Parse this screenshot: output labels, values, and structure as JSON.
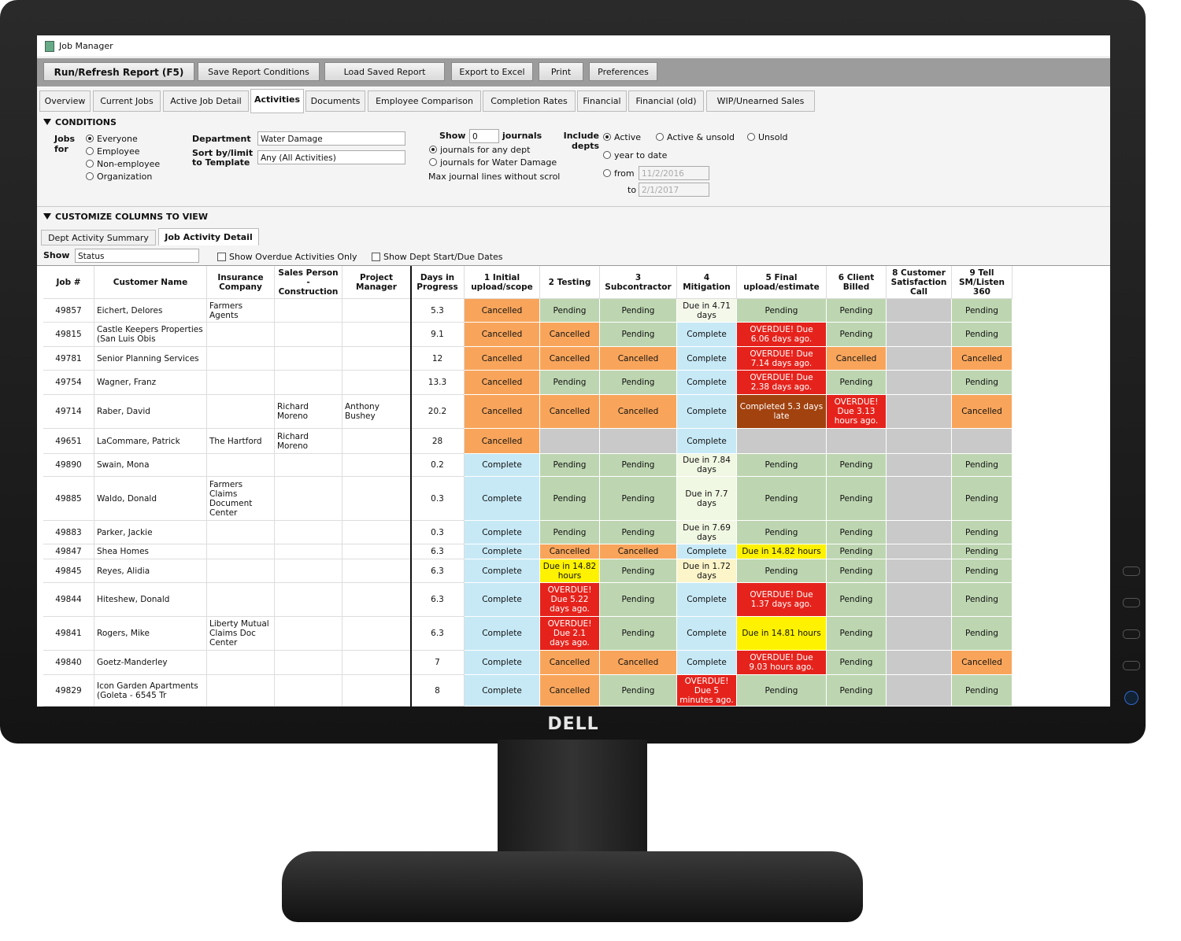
{
  "monitor": {
    "brand": "DELL"
  },
  "window": {
    "title": "Job Manager"
  },
  "toolbar": [
    "Run/Refresh Report (F5)",
    "Save Report Conditions",
    "Load Saved Report",
    "Export to Excel",
    "Print",
    "Preferences"
  ],
  "tabs": [
    "Overview",
    "Current Jobs",
    "Active Job Detail",
    "Activities",
    "Documents",
    "Employee Comparison",
    "Completion Rates",
    "Financial",
    "Financial (old)",
    "WIP/Unearned Sales"
  ],
  "conditions": {
    "title": "CONDITIONS",
    "jobs_for_label": "Jobs for",
    "jobs_for_options": [
      "Everyone",
      "Employee",
      "Non-employee",
      "Organization"
    ],
    "department_label": "Department",
    "department_value": "Water Damage",
    "sort_label": "Sort by/limit to Template",
    "sort_value": "Any (All Activities)",
    "show_label": "Show",
    "show_value": "0",
    "journals_label": "journals",
    "journal_options": [
      "journals for any dept",
      "journals for Water Damage"
    ],
    "max_lines_label": "Max journal lines without scrol",
    "include_label": "Include depts",
    "include_options": [
      "Active",
      "Active & unsold",
      "Unsold"
    ],
    "year_to_date": "year to date",
    "from_label": "from",
    "from_value": "11/2/2016",
    "to_label": "to",
    "to_value": "2/1/2017"
  },
  "customize": {
    "title": "CUSTOMIZE COLUMNS TO VIEW",
    "subtabs": [
      "Dept Activity Summary",
      "Job Activity Detail"
    ],
    "show_label": "Show",
    "show_value": "Status",
    "checkboxes": [
      "Show Overdue Activities Only",
      "Show Dept Start/Due Dates"
    ]
  },
  "table": {
    "headers": [
      "Job #",
      "Customer Name",
      "Insurance Company",
      "Sales Person - Construction",
      "Project Manager",
      "Days in Progress",
      "1 Initial upload/scope",
      "2 Testing",
      "3 Subcontractor",
      "4 Mitigation",
      "5 Final upload/estimate",
      "6 Client Billed",
      "8 Customer Satisfaction Call",
      "9 Tell SM/Listen 360"
    ],
    "rows": [
      {
        "job": 49857,
        "customer": "Eichert, Delores",
        "insurance": "Farmers Agents",
        "sales_person": null,
        "project_manager": null,
        "days": 5.3,
        "activities": [
          {
            "text": "Cancelled",
            "color": "#f8a55b"
          },
          {
            "text": "Pending",
            "color": "#bdd6b1"
          },
          {
            "text": "Pending",
            "color": "#bdd6b1"
          },
          {
            "text": "Due in 4.71 days",
            "color": "#f4f8ea"
          },
          {
            "text": "Pending",
            "color": "#bdd6b1"
          },
          {
            "text": "Pending",
            "color": "#bdd6b1"
          },
          {
            "color": "#c9c9c9"
          },
          {
            "text": "Pending",
            "color": "#bdd6b1"
          }
        ]
      },
      {
        "job": 49815,
        "customer": "Castle Keepers Properties (San Luis Obis",
        "insurance": null,
        "sales_person": null,
        "project_manager": null,
        "days": 9.1,
        "activities": [
          {
            "text": "Cancelled",
            "color": "#f8a55b"
          },
          {
            "text": "Cancelled",
            "color": "#f8a55b"
          },
          {
            "text": "Pending",
            "color": "#bdd6b1"
          },
          {
            "text": "Complete",
            "color": "#c7e9f6"
          },
          {
            "text": "OVERDUE! Due 6.06 days ago.",
            "color": "#e5231c"
          },
          {
            "text": "Pending",
            "color": "#bdd6b1"
          },
          {
            "color": "#c9c9c9"
          },
          {
            "text": "Pending",
            "color": "#bdd6b1"
          }
        ]
      },
      {
        "job": 49781,
        "customer": "Senior Planning Services",
        "insurance": null,
        "sales_person": null,
        "project_manager": null,
        "days": 12,
        "activities": [
          {
            "text": "Cancelled",
            "color": "#f8a55b"
          },
          {
            "text": "Cancelled",
            "color": "#f8a55b"
          },
          {
            "text": "Cancelled",
            "color": "#f8a55b"
          },
          {
            "text": "Complete",
            "color": "#c7e9f6"
          },
          {
            "text": "OVERDUE! Due 7.14 days ago.",
            "color": "#e5231c"
          },
          {
            "text": "Cancelled",
            "color": "#f8a55b"
          },
          {
            "color": "#c9c9c9"
          },
          {
            "text": "Cancelled",
            "color": "#f8a55b"
          }
        ]
      },
      {
        "job": 49754,
        "customer": "Wagner, Franz",
        "insurance": null,
        "sales_person": null,
        "project_manager": null,
        "days": 13.3,
        "activities": [
          {
            "text": "Cancelled",
            "color": "#f8a55b"
          },
          {
            "text": "Pending",
            "color": "#bdd6b1"
          },
          {
            "text": "Pending",
            "color": "#bdd6b1"
          },
          {
            "text": "Complete",
            "color": "#c7e9f6"
          },
          {
            "text": "OVERDUE! Due 2.38 days ago.",
            "color": "#e5231c"
          },
          {
            "text": "Pending",
            "color": "#bdd6b1"
          },
          {
            "color": "#c9c9c9"
          },
          {
            "text": "Pending",
            "color": "#bdd6b1"
          }
        ]
      },
      {
        "job": 49714,
        "customer": "Raber, David",
        "insurance": null,
        "sales_person": "Richard Moreno",
        "project_manager": "Anthony Bushey",
        "days": 20.2,
        "activities": [
          {
            "text": "Cancelled",
            "color": "#f8a55b"
          },
          {
            "text": "Cancelled",
            "color": "#f8a55b"
          },
          {
            "text": "Cancelled",
            "color": "#f8a55b"
          },
          {
            "text": "Complete",
            "color": "#c7e9f6"
          },
          {
            "text": "Completed 5.3 days late",
            "color": "#a1420f"
          },
          {
            "text": "OVERDUE! Due 3.13 hours ago.",
            "color": "#e5231c"
          },
          {
            "color": "#c9c9c9"
          },
          {
            "text": "Cancelled",
            "color": "#f8a55b"
          }
        ]
      },
      {
        "job": 49651,
        "customer": "LaCommare, Patrick",
        "insurance": "The Hartford",
        "sales_person": "Richard Moreno",
        "project_manager": null,
        "days": 28,
        "activities": [
          {
            "text": "Cancelled",
            "color": "#f8a55b"
          },
          {
            "color": "#c9c9c9"
          },
          {
            "color": "#c9c9c9"
          },
          {
            "text": "Complete",
            "color": "#c7e9f6"
          },
          {
            "color": "#c9c9c9"
          },
          {
            "color": "#c9c9c9"
          },
          {
            "color": "#c9c9c9"
          },
          {
            "color": "#c9c9c9"
          }
        ]
      },
      {
        "job": 49890,
        "customer": "Swain, Mona",
        "insurance": null,
        "sales_person": null,
        "project_manager": null,
        "days": 0.2,
        "activities": [
          {
            "text": "Complete",
            "color": "#c7e9f6"
          },
          {
            "text": "Pending",
            "color": "#bdd6b1"
          },
          {
            "text": "Pending",
            "color": "#bdd6b1"
          },
          {
            "text": "Due in 7.84 days",
            "color": "#f0f7e2"
          },
          {
            "text": "Pending",
            "color": "#bdd6b1"
          },
          {
            "text": "Pending",
            "color": "#bdd6b1"
          },
          {
            "color": "#c9c9c9"
          },
          {
            "text": "Pending",
            "color": "#bdd6b1"
          }
        ]
      },
      {
        "job": 49885,
        "customer": "Waldo, Donald",
        "insurance": "Farmers Claims Document Center",
        "sales_person": null,
        "project_manager": null,
        "days": 0.3,
        "activities": [
          {
            "text": "Complete",
            "color": "#c7e9f6"
          },
          {
            "text": "Pending",
            "color": "#bdd6b1"
          },
          {
            "text": "Pending",
            "color": "#bdd6b1"
          },
          {
            "text": "Due in 7.7 days",
            "color": "#f0f7e2"
          },
          {
            "text": "Pending",
            "color": "#bdd6b1"
          },
          {
            "text": "Pending",
            "color": "#bdd6b1"
          },
          {
            "color": "#c9c9c9"
          },
          {
            "text": "Pending",
            "color": "#bdd6b1"
          }
        ]
      },
      {
        "job": 49883,
        "customer": "Parker, Jackie",
        "insurance": null,
        "sales_person": null,
        "project_manager": null,
        "days": 0.3,
        "activities": [
          {
            "text": "Complete",
            "color": "#c7e9f6"
          },
          {
            "text": "Pending",
            "color": "#bdd6b1"
          },
          {
            "text": "Pending",
            "color": "#bdd6b1"
          },
          {
            "text": "Due in 7.69 days",
            "color": "#f0f7e2"
          },
          {
            "text": "Pending",
            "color": "#bdd6b1"
          },
          {
            "text": "Pending",
            "color": "#bdd6b1"
          },
          {
            "color": "#c9c9c9"
          },
          {
            "text": "Pending",
            "color": "#bdd6b1"
          }
        ]
      },
      {
        "job": 49847,
        "customer": "Shea Homes",
        "insurance": null,
        "sales_person": null,
        "project_manager": null,
        "days": 6.3,
        "activities": [
          {
            "text": "Complete",
            "color": "#c7e9f6"
          },
          {
            "text": "Cancelled",
            "color": "#f8a55b"
          },
          {
            "text": "Cancelled",
            "color": "#f8a55b"
          },
          {
            "text": "Complete",
            "color": "#c7e9f6"
          },
          {
            "text": "Due in 14.82 hours",
            "color": "#fff200"
          },
          {
            "text": "Pending",
            "color": "#bdd6b1"
          },
          {
            "color": "#c9c9c9"
          },
          {
            "text": "Pending",
            "color": "#bdd6b1"
          }
        ]
      },
      {
        "job": 49845,
        "customer": "Reyes, Alidia",
        "insurance": null,
        "sales_person": null,
        "project_manager": null,
        "days": 6.3,
        "activities": [
          {
            "text": "Complete",
            "color": "#c7e9f6"
          },
          {
            "text": "Due in 14.82 hours",
            "color": "#fff200"
          },
          {
            "text": "Pending",
            "color": "#bdd6b1"
          },
          {
            "text": "Due in 1.72 days",
            "color": "#fcf5c9"
          },
          {
            "text": "Pending",
            "color": "#bdd6b1"
          },
          {
            "text": "Pending",
            "color": "#bdd6b1"
          },
          {
            "color": "#c9c9c9"
          },
          {
            "text": "Pending",
            "color": "#bdd6b1"
          }
        ]
      },
      {
        "job": 49844,
        "customer": "Hiteshew, Donald",
        "insurance": null,
        "sales_person": null,
        "project_manager": null,
        "days": 6.3,
        "activities": [
          {
            "text": "Complete",
            "color": "#c7e9f6"
          },
          {
            "text": "OVERDUE! Due 5.22 days ago.",
            "color": "#e5231c"
          },
          {
            "text": "Pending",
            "color": "#bdd6b1"
          },
          {
            "text": "Complete",
            "color": "#c7e9f6"
          },
          {
            "text": "OVERDUE! Due 1.37 days ago.",
            "color": "#e5231c"
          },
          {
            "text": "Pending",
            "color": "#bdd6b1"
          },
          {
            "color": "#c9c9c9"
          },
          {
            "text": "Pending",
            "color": "#bdd6b1"
          }
        ]
      },
      {
        "job": 49841,
        "customer": "Rogers, Mike",
        "insurance": "Liberty Mutual Claims Doc Center",
        "sales_person": null,
        "project_manager": null,
        "days": 6.3,
        "activities": [
          {
            "text": "Complete",
            "color": "#c7e9f6"
          },
          {
            "text": "OVERDUE! Due 2.1 days ago.",
            "color": "#e5231c"
          },
          {
            "text": "Pending",
            "color": "#bdd6b1"
          },
          {
            "text": "Complete",
            "color": "#c7e9f6"
          },
          {
            "text": "Due in 14.81 hours",
            "color": "#fff200"
          },
          {
            "text": "Pending",
            "color": "#bdd6b1"
          },
          {
            "color": "#c9c9c9"
          },
          {
            "text": "Pending",
            "color": "#bdd6b1"
          }
        ]
      },
      {
        "job": 49840,
        "customer": "Goetz-Manderley",
        "insurance": null,
        "sales_person": null,
        "project_manager": null,
        "days": 7,
        "activities": [
          {
            "text": "Complete",
            "color": "#c7e9f6"
          },
          {
            "text": "Cancelled",
            "color": "#f8a55b"
          },
          {
            "text": "Cancelled",
            "color": "#f8a55b"
          },
          {
            "text": "Complete",
            "color": "#c7e9f6"
          },
          {
            "text": "OVERDUE! Due 9.03 hours ago.",
            "color": "#e5231c"
          },
          {
            "text": "Pending",
            "color": "#bdd6b1"
          },
          {
            "color": "#c9c9c9"
          },
          {
            "text": "Cancelled",
            "color": "#f8a55b"
          }
        ]
      },
      {
        "job": 49829,
        "customer": "Icon Garden Apartments (Goleta - 6545 Tr",
        "insurance": null,
        "sales_person": null,
        "project_manager": null,
        "days": 8,
        "activities": [
          {
            "text": "Complete",
            "color": "#c7e9f6"
          },
          {
            "text": "Cancelled",
            "color": "#f8a55b"
          },
          {
            "text": "Pending",
            "color": "#bdd6b1"
          },
          {
            "text": "OVERDUE! Due 5 minutes ago.",
            "color": "#e5231c"
          },
          {
            "text": "Pending",
            "color": "#bdd6b1"
          },
          {
            "text": "Pending",
            "color": "#bdd6b1"
          },
          {
            "color": "#c9c9c9"
          },
          {
            "text": "Pending",
            "color": "#bdd6b1"
          }
        ]
      }
    ]
  }
}
